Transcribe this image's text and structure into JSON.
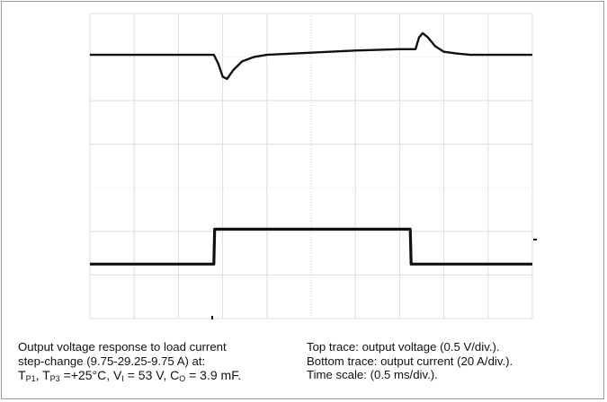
{
  "chart_data": {
    "type": "line",
    "x_range": [
      0,
      5
    ],
    "time_scale_per_div": "0.5 ms/div.",
    "grid": true,
    "series": [
      {
        "name": "output voltage",
        "scale_per_div": "0.5 V/div.",
        "x": [
          0,
          1.4,
          1.45,
          1.5,
          1.55,
          1.62,
          1.72,
          1.85,
          2.0,
          2.5,
          3.0,
          3.5,
          3.68,
          3.72,
          3.76,
          3.82,
          3.9,
          4.0,
          4.15,
          4.3,
          5
        ],
        "y": [
          6.05,
          6.05,
          5.85,
          5.55,
          5.5,
          5.7,
          5.9,
          6.0,
          6.05,
          6.1,
          6.15,
          6.18,
          6.18,
          6.45,
          6.55,
          6.45,
          6.25,
          6.12,
          6.08,
          6.05,
          6.05
        ]
      },
      {
        "name": "output current",
        "scale_per_div": "20 A/div.",
        "x": [
          0,
          1.4,
          1.41,
          3.62,
          3.63,
          5
        ],
        "y": [
          1.25,
          1.25,
          2.05,
          2.05,
          1.25,
          1.25
        ]
      }
    ]
  },
  "caption": {
    "left_line1": "Output voltage response to load current",
    "left_line2": "step-change (9.75-29.25-9.75 A) at:",
    "tp1_T": "T",
    "tp1_sub": "P1",
    "sep": ", ",
    "tp3_T": "T",
    "tp3_sub": "P3",
    "temp": " =+25°C, V",
    "vi_sub": "I",
    "vi_val": " = 53 V, C",
    "co_sub": "O",
    "co_val": " = 3.9 mF.",
    "right_line1": "Top trace: output voltage (0.5 V/div.).",
    "right_line2": "Bottom trace: output current (20 A/div.).",
    "right_line3": "Time scale: (0.5 ms/div.)."
  }
}
